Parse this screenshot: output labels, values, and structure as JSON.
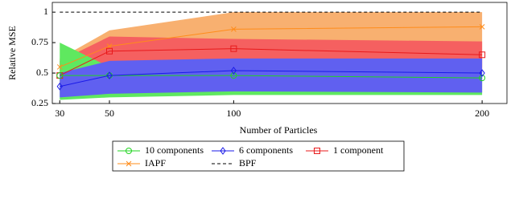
{
  "chart_data": {
    "type": "line",
    "x_label": "Number of Particles",
    "y_label": "Relative MSE",
    "x": [
      30,
      50,
      100,
      200
    ],
    "xlim": [
      27,
      210
    ],
    "xticks": [
      30,
      50,
      100,
      200
    ],
    "ylim": [
      0.25,
      1.08
    ],
    "yticks": [
      0.25,
      0.5,
      0.75,
      1
    ],
    "series": [
      {
        "name": "IAPF",
        "color": "#ff8c1a",
        "band_color": "#f8b070",
        "marker": "x",
        "values": [
          0.55,
          0.72,
          0.86,
          0.88
        ],
        "lower": [
          0.45,
          0.55,
          0.57,
          0.55
        ],
        "upper": [
          0.62,
          0.85,
          1.0,
          1.0
        ]
      },
      {
        "name": "1 component",
        "color": "#e8191b",
        "band_color": "#f56060",
        "marker": "square",
        "values": [
          0.48,
          0.68,
          0.7,
          0.65
        ],
        "lower": [
          0.4,
          0.5,
          0.5,
          0.5
        ],
        "upper": [
          0.6,
          0.8,
          0.78,
          0.76
        ]
      },
      {
        "name": "10 components",
        "color": "#21d421",
        "band_color": "#5fe85f",
        "marker": "circle",
        "values": [
          0.48,
          0.48,
          0.48,
          0.46
        ],
        "lower": [
          0.28,
          0.3,
          0.32,
          0.32
        ],
        "upper": [
          0.75,
          0.55,
          0.55,
          0.53
        ]
      },
      {
        "name": "6 components",
        "color": "#1a1ae8",
        "band_color": "#6060f0",
        "marker": "diamond",
        "values": [
          0.39,
          0.48,
          0.52,
          0.5
        ],
        "lower": [
          0.3,
          0.33,
          0.35,
          0.34
        ],
        "upper": [
          0.5,
          0.6,
          0.62,
          0.62
        ]
      },
      {
        "name": "BPF",
        "color": "#000000",
        "marker": "none",
        "dashed": true,
        "values": [
          1,
          1,
          1,
          1
        ]
      }
    ],
    "legend_order": [
      2,
      3,
      1,
      0,
      4
    ]
  }
}
